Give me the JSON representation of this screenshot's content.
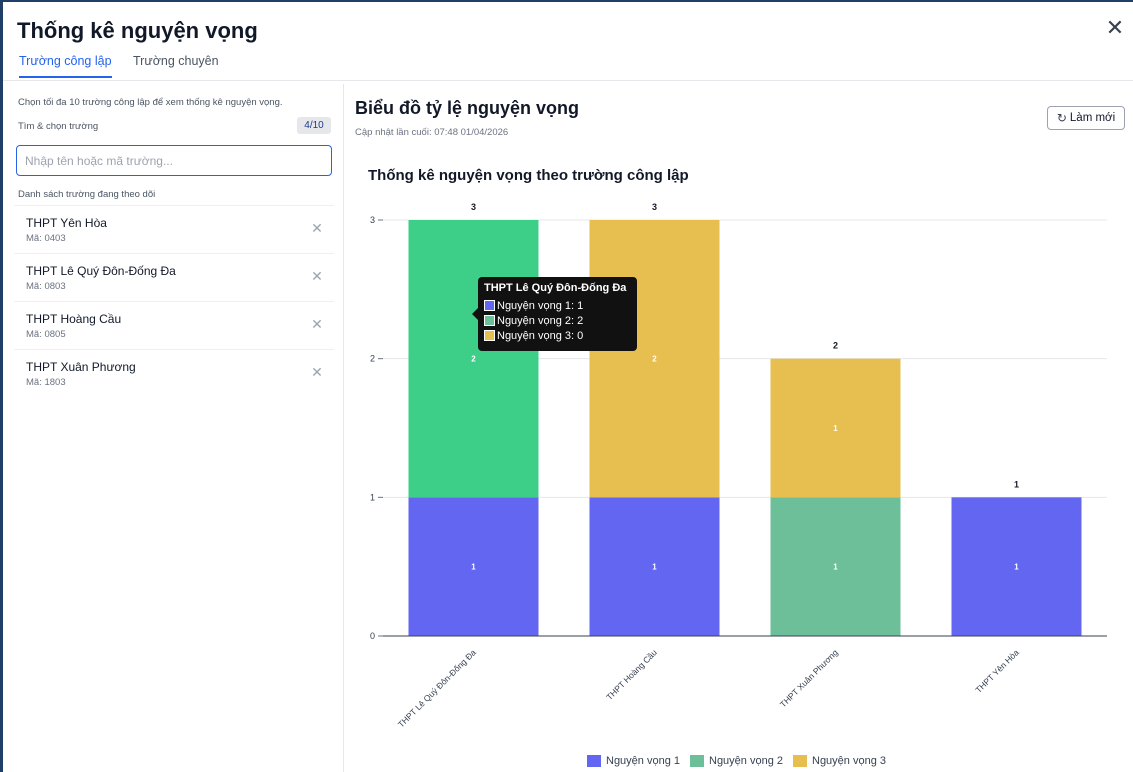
{
  "dialog": {
    "title": "Thống kê nguyện vọng",
    "close_glyph": "✕",
    "tabs": [
      {
        "label": "Trường công lập",
        "active": true
      },
      {
        "label": "Trường chuyên",
        "active": false
      }
    ]
  },
  "sidebar": {
    "hint": "Chọn tối đa 10 trường công lập để xem thống kê nguyện vọng.",
    "search_label": "Tìm & chọn trường",
    "count": "4/10",
    "search_placeholder": "Nhập tên hoặc mã trường...",
    "search_value": "",
    "list_label": "Danh sách trường đang theo dõi",
    "remove_glyph": "✕",
    "schools": [
      {
        "name": "THPT Yên Hòa",
        "code": "Mã: 0403"
      },
      {
        "name": "THPT Lê Quý Đôn-Đống Đa",
        "code": "Mã: 0803"
      },
      {
        "name": "THPT Hoàng Cầu",
        "code": "Mã: 0805"
      },
      {
        "name": "THPT Xuân Phương",
        "code": "Mã: 1803"
      }
    ]
  },
  "main": {
    "title": "Biểu đồ tỷ lệ nguyện vọng",
    "updated": "Cập nhật lần cuối: 07:48 01/04/2026",
    "refresh_label": "Làm mới",
    "refresh_icon": "refresh-icon"
  },
  "tooltip": {
    "title": "THPT Lê Quý Đôn-Đống Đa",
    "rows": [
      "Nguyện vọng 1: 1",
      "Nguyện vọng 2: 2",
      "Nguyện vọng 3: 0"
    ]
  },
  "colors": {
    "nv1": "#6366f1",
    "nv2": "#6dbf9a",
    "nv2_highlight": "#3dcf88",
    "nv3": "#e6bf50"
  },
  "chart_data": {
    "type": "bar",
    "stacked": true,
    "title": "Thống kê nguyện vọng theo trường công lập",
    "categories": [
      "THPT Lê Quý Đôn-Đống Đa",
      "THPT Hoàng Cầu",
      "THPT Xuân Phương",
      "THPT Yên Hòa"
    ],
    "series": [
      {
        "name": "Nguyện vọng 1",
        "values": [
          1,
          1,
          0,
          1
        ]
      },
      {
        "name": "Nguyện vọng 2",
        "values": [
          2,
          0,
          1,
          0
        ]
      },
      {
        "name": "Nguyện vọng 3",
        "values": [
          0,
          2,
          1,
          0
        ]
      }
    ],
    "totals": [
      3,
      3,
      2,
      1
    ],
    "yticks": [
      0,
      1,
      2,
      3
    ],
    "ylim": [
      0,
      3
    ],
    "highlighted_category": 0,
    "grid": true,
    "legend": "bottom"
  }
}
